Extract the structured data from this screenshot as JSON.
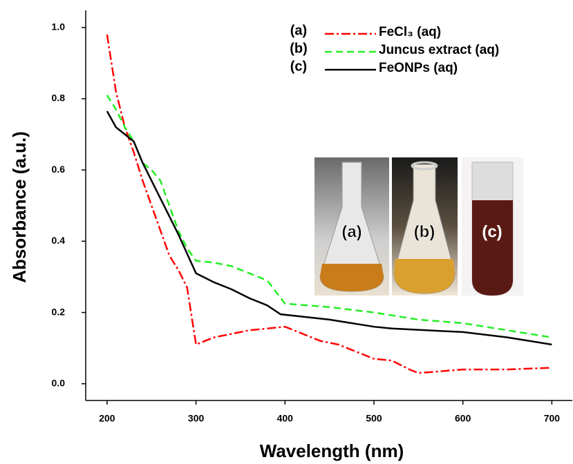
{
  "chart_data": {
    "type": "line",
    "x_label": "Wavelength (nm)",
    "y_label": "Absorbance (a.u.)",
    "xlim": [
      176,
      723
    ],
    "ylim": [
      -0.047,
      1.048
    ],
    "xticks": [
      200,
      300,
      400,
      500,
      600,
      700
    ],
    "yticks": [
      {
        "value": 0,
        "label": "0.0"
      },
      0.2,
      0.4,
      0.6,
      0.8,
      {
        "value": 1,
        "label": "1.0"
      }
    ],
    "series": [
      {
        "tag": "(a)",
        "name": "FeCl₃ (aq)",
        "color": "#ff0000",
        "style": "dashdot",
        "x": [
          200,
          210,
          220,
          230,
          240,
          250,
          260,
          270,
          280,
          290,
          300,
          320,
          340,
          360,
          380,
          400,
          420,
          440,
          460,
          480,
          500,
          520,
          540,
          550,
          600,
          650,
          700
        ],
        "values": [
          0.98,
          0.82,
          0.72,
          0.65,
          0.57,
          0.5,
          0.43,
          0.36,
          0.32,
          0.27,
          0.11,
          0.13,
          0.14,
          0.15,
          0.155,
          0.16,
          0.14,
          0.12,
          0.11,
          0.09,
          0.07,
          0.065,
          0.04,
          0.03,
          0.04,
          0.04,
          0.045
        ]
      },
      {
        "tag": "(b)",
        "name": "Juncus extract (aq)",
        "color": "#22ee22",
        "style": "dashed",
        "x": [
          200,
          210,
          220,
          230,
          240,
          250,
          260,
          270,
          280,
          290,
          300,
          320,
          340,
          360,
          380,
          400,
          450,
          500,
          550,
          600,
          650,
          700
        ],
        "values": [
          0.81,
          0.77,
          0.72,
          0.68,
          0.62,
          0.6,
          0.57,
          0.5,
          0.43,
          0.38,
          0.345,
          0.34,
          0.33,
          0.31,
          0.29,
          0.225,
          0.215,
          0.2,
          0.18,
          0.17,
          0.15,
          0.13
        ]
      },
      {
        "tag": "(c)",
        "name": "FeONPs (aq)",
        "color": "#000000",
        "style": "solid",
        "x": [
          200,
          210,
          230,
          240,
          260,
          280,
          300,
          320,
          340,
          360,
          380,
          395,
          450,
          500,
          520,
          600,
          650,
          700
        ],
        "values": [
          0.765,
          0.72,
          0.68,
          0.62,
          0.52,
          0.42,
          0.31,
          0.285,
          0.265,
          0.24,
          0.22,
          0.195,
          0.18,
          0.16,
          0.155,
          0.145,
          0.13,
          0.11
        ]
      }
    ],
    "inset_labels": [
      "(a)",
      "(b)",
      "(c)"
    ]
  }
}
